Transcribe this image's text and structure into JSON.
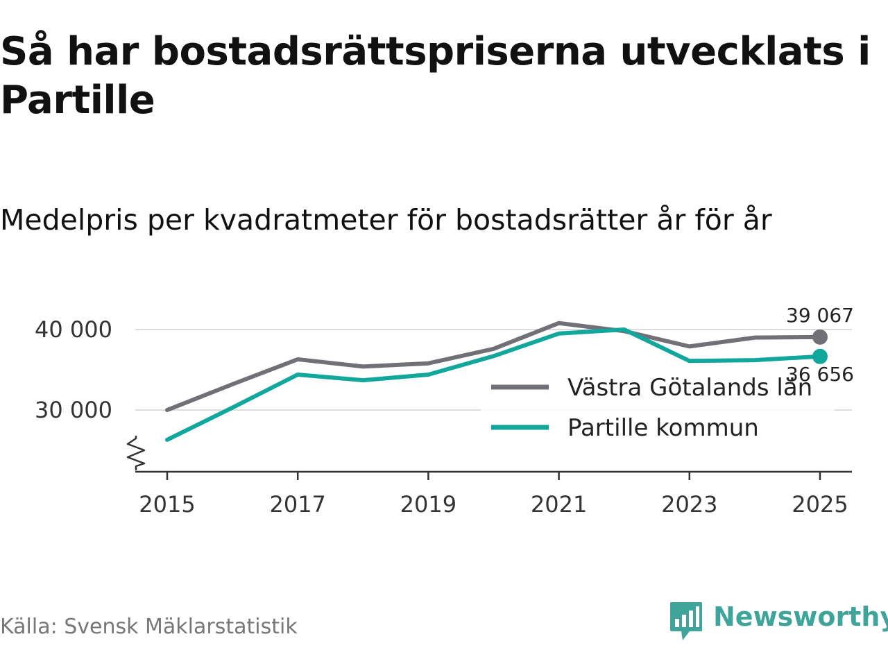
{
  "header": {
    "title": "Så har bostadsrättspriserna utvecklats i Partille",
    "subtitle": "Medelpris per kvadratmeter för bostadsrätter år för år"
  },
  "footer": {
    "source": "Källa: Svensk Mäklarstatistik",
    "brand": "Newsworthy"
  },
  "chart_data": {
    "type": "line",
    "title": "Så har bostadsrättspriserna utvecklats i Partille",
    "subtitle": "Medelpris per kvadratmeter för bostadsrätter år för år",
    "xlabel": "",
    "ylabel": "",
    "x": [
      2015,
      2016,
      2017,
      2018,
      2019,
      2020,
      2021,
      2022,
      2023,
      2024,
      2025
    ],
    "xticks": [
      2015,
      2017,
      2019,
      2021,
      2023,
      2025
    ],
    "xtick_labels": [
      "2015",
      "2017",
      "2019",
      "2021",
      "2023",
      "2025"
    ],
    "yticks": [
      30000,
      40000
    ],
    "ytick_labels": [
      "30 000",
      "40 000"
    ],
    "ylim": [
      22500,
      42000
    ],
    "axis_break": true,
    "grid": true,
    "legend_position": "bottom-right",
    "series": [
      {
        "name": "Västra Götalands län",
        "color": "#717076",
        "values": [
          30000,
          33200,
          36300,
          35400,
          35800,
          37600,
          40800,
          39800,
          37900,
          39000,
          39067
        ],
        "end_label": "39 067"
      },
      {
        "name": "Partille kommun",
        "color": "#12a79d",
        "values": [
          26300,
          30300,
          34400,
          33700,
          34400,
          36700,
          39500,
          40000,
          36100,
          36200,
          36656
        ],
        "end_label": "36 656"
      }
    ]
  }
}
